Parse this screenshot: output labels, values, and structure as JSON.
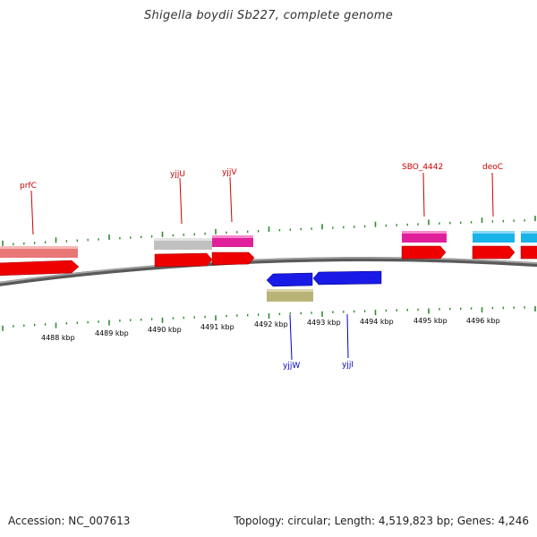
{
  "title": "Shigella boydii Sb227, complete genome",
  "footer": {
    "accession": "Accession: NC_007613",
    "topology": "Topology: circular; Length: 4,519,823 bp; Genes: 4,246"
  },
  "colors": {
    "backbone": "#888888",
    "tick": "#2e8b2e",
    "forward_label": "#cc0000",
    "reverse_label": "#0000cc",
    "cds_red": "#ee0000",
    "gene_pink": "#e87878",
    "gene_gray": "#c0c0c0",
    "gene_magenta": "#e0209a",
    "gene_cyan": "#18b4e8",
    "cds_blue": "#1a1ae6",
    "gene_olive": "#b8b478"
  },
  "axis": {
    "tick_labels": [
      "4488 kbp",
      "4489 kbp",
      "4490 kbp",
      "4491 kbp",
      "4492 kbp",
      "4493 kbp",
      "4494 kbp",
      "4495 kbp",
      "4496 kbp"
    ]
  },
  "genes": {
    "forward": [
      {
        "name": "prfC",
        "color": "gene_pink"
      },
      {
        "name": "yjjU",
        "color": "gene_gray"
      },
      {
        "name": "yjjV",
        "color": "gene_magenta"
      },
      {
        "name": "SBO_4442",
        "color": "gene_magenta"
      },
      {
        "name": "deoC",
        "color": "gene_cyan"
      }
    ],
    "reverse": [
      {
        "name": "yjjW",
        "color": "cds_blue"
      },
      {
        "name": "yjjI",
        "color": "cds_blue"
      }
    ]
  }
}
